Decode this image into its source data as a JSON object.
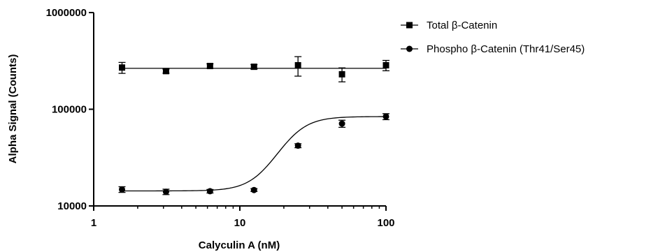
{
  "chart_data": {
    "type": "scatter",
    "xlabel": "Calyculin A (nM)",
    "ylabel": "Alpha Signal (Counts)",
    "x_scale": "log",
    "y_scale": "log",
    "xlim": [
      1,
      100
    ],
    "ylim": [
      10000,
      1000000
    ],
    "x_ticks": [
      1,
      10,
      100
    ],
    "x_tick_labels": [
      "1",
      "10",
      "100"
    ],
    "y_ticks": [
      10000,
      100000,
      1000000
    ],
    "y_tick_labels": [
      "10000",
      "100000",
      "1000000"
    ],
    "grid": false,
    "legend_position": "right",
    "x": [
      1.5625,
      3.125,
      6.25,
      12.5,
      25,
      50,
      100
    ],
    "series": [
      {
        "name": "Total β-Catenin",
        "marker": "square",
        "values": [
          270000,
          248000,
          280000,
          275000,
          285000,
          230000,
          285000
        ],
        "error": [
          35000,
          12000,
          15000,
          15000,
          65000,
          38000,
          35000
        ],
        "fit": {
          "model": "horizontal",
          "value": 265000
        }
      },
      {
        "name": "Phospho β-Catenin (Thr41/Ser45)",
        "marker": "circle",
        "values": [
          14800,
          14000,
          14200,
          14600,
          42000,
          71000,
          84000
        ],
        "error": [
          1000,
          900,
          600,
          500,
          2000,
          6000,
          6000
        ],
        "fit": {
          "model": "sigmoid",
          "bottom": 14300,
          "top": 84000,
          "ec50": 22,
          "hill": 4.5
        }
      }
    ]
  }
}
